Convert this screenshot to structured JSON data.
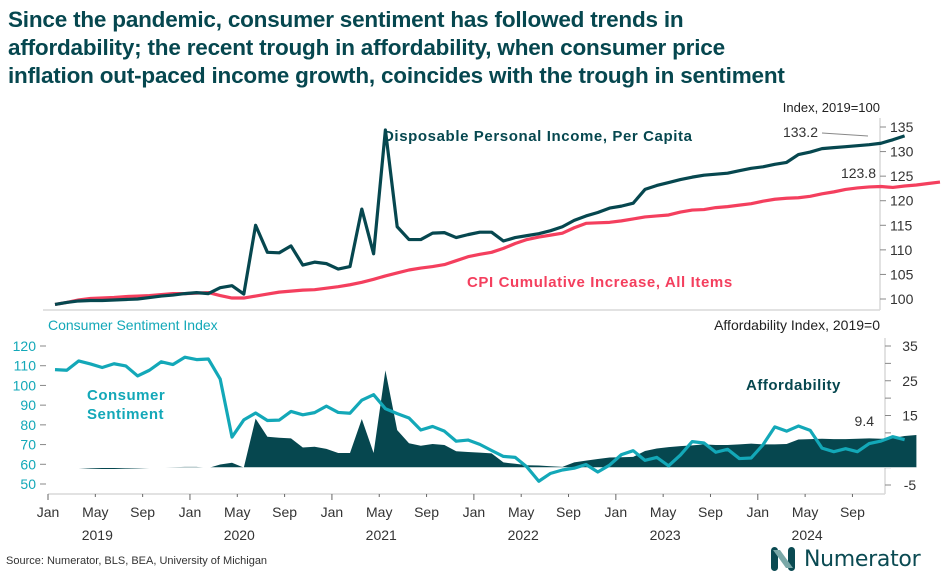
{
  "title_lines": [
    "Since the pandemic, consumer sentiment has followed trends in",
    "affordability; the recent trough in affordability, when consumer price",
    "inflation out-paced income growth, coincides with the trough in sentiment"
  ],
  "source": "Source: Numerator, BLS, BEA, University of Michigan",
  "logo_text": "Numerator",
  "colors": {
    "title": "#06474f",
    "income": "#06474f",
    "cpi": "#f43f5e",
    "sentiment": "#13a8b8",
    "affordability": "#06474f"
  },
  "chart_data": [
    {
      "type": "line",
      "ylabel": "Index, 2019=100",
      "ylim": [
        98,
        136
      ],
      "yticks": [
        100,
        105,
        110,
        115,
        120,
        125,
        130,
        135
      ],
      "x_start": "2019-01",
      "series": [
        {
          "name": "Disposable Personal Income, Per Capita",
          "end_label": "133.2",
          "values": [
            98.9,
            99.3,
            99.6,
            99.7,
            99.7,
            99.8,
            99.9,
            100.0,
            100.3,
            100.6,
            100.8,
            101.1,
            101.3,
            101.1,
            102.3,
            102.7,
            101.0,
            115.0,
            109.5,
            109.4,
            110.8,
            106.9,
            107.5,
            107.2,
            106.1,
            106.6,
            118.3,
            109.2,
            134.4,
            114.7,
            112.1,
            112.1,
            113.4,
            113.5,
            112.5,
            113.1,
            113.6,
            113.6,
            111.8,
            112.5,
            112.9,
            113.3,
            113.9,
            114.7,
            116.0,
            116.9,
            117.6,
            118.5,
            118.9,
            119.5,
            122.3,
            123.1,
            123.7,
            124.3,
            124.8,
            125.2,
            125.4,
            125.6,
            126.1,
            126.6,
            126.9,
            127.4,
            127.8,
            129.4,
            129.9,
            130.6,
            130.8,
            131.0,
            131.2,
            131.4,
            131.7,
            132.4,
            133.2
          ]
        },
        {
          "name": "CPI Cumulative Increase, All Items",
          "end_label": "123.8",
          "values": [
            98.9,
            99.3,
            99.8,
            100.1,
            100.2,
            100.3,
            100.5,
            100.6,
            100.7,
            100.9,
            101.1,
            101.1,
            101.2,
            101.3,
            100.7,
            100.2,
            100.2,
            100.6,
            101.0,
            101.4,
            101.6,
            101.8,
            101.9,
            102.2,
            102.5,
            102.9,
            103.4,
            104.0,
            104.7,
            105.3,
            105.9,
            106.3,
            106.6,
            107.0,
            107.8,
            108.6,
            109.1,
            109.5,
            110.3,
            111.3,
            112.1,
            112.6,
            113.0,
            113.4,
            114.5,
            115.4,
            115.5,
            115.6,
            115.9,
            116.3,
            116.7,
            116.9,
            117.1,
            117.7,
            118.1,
            118.2,
            118.6,
            118.8,
            119.1,
            119.4,
            119.9,
            120.3,
            120.5,
            120.6,
            120.9,
            121.4,
            121.8,
            122.3,
            122.6,
            122.8,
            122.9,
            122.7,
            123.0,
            123.2,
            123.5,
            123.8
          ]
        }
      ],
      "annotations": [
        "Disposable Personal Income, Per Capita",
        "CPI Cumulative Increase, All Items"
      ]
    },
    {
      "type": "line+area",
      "ylabel_left": "Consumer Sentiment Index",
      "ylabel_right": "Affordability Index, 2019=0",
      "ylim_left": [
        46,
        124
      ],
      "yticks_left": [
        50,
        60,
        70,
        80,
        90,
        100,
        110,
        120
      ],
      "ylim_right": [
        -7,
        37
      ],
      "yticks_right": [
        -5,
        0,
        5,
        10,
        15,
        20,
        25,
        30,
        35
      ],
      "yticklabels_right": [
        "-5",
        "",
        "5",
        "",
        "15",
        "",
        "25",
        "",
        "35"
      ],
      "x_start": "2019-01",
      "series": [
        {
          "name": "Consumer Sentiment",
          "axis": "left",
          "type": "line",
          "values": [
            108.0,
            107.7,
            112.4,
            110.9,
            109.1,
            111.0,
            109.9,
            104.8,
            107.7,
            112.0,
            110.6,
            114.3,
            113.1,
            113.4,
            103.2,
            73.8,
            82.5,
            86.0,
            82.2,
            82.4,
            86.8,
            85.1,
            86.2,
            89.5,
            86.3,
            85.9,
            92.5,
            95.3,
            88.2,
            85.7,
            83.5,
            77.4,
            79.2,
            76.8,
            71.7,
            72.3,
            70.1,
            67.0,
            64.0,
            63.5,
            58.6,
            51.4,
            55.4,
            57.1,
            58.0,
            59.9,
            56.1,
            59.6,
            64.9,
            66.9,
            62.0,
            63.5,
            59.2,
            64.7,
            71.5,
            70.8,
            66.1,
            67.6,
            62.9,
            63.2,
            69.9,
            79.0,
            76.8,
            79.4,
            77.2,
            68.2,
            66.4,
            67.9,
            66.4,
            70.5,
            71.8,
            74.0,
            72.5
          ]
        },
        {
          "name": "Affordability",
          "axis": "right",
          "type": "area",
          "end_label": "9.4",
          "values": [
            0.0,
            0.0,
            -0.1,
            -0.3,
            -0.4,
            -0.4,
            -0.3,
            -0.2,
            -0.1,
            0.0,
            0.1,
            0.2,
            0.2,
            -0.1,
            0.9,
            1.4,
            0.0,
            14.1,
            8.9,
            8.6,
            8.4,
            5.8,
            6.0,
            5.4,
            4.2,
            4.2,
            14.0,
            4.2,
            28.0,
            10.8,
            7.0,
            6.3,
            6.8,
            6.5,
            4.7,
            4.5,
            4.3,
            4.1,
            1.5,
            1.1,
            0.7,
            0.6,
            0.4,
            0.2,
            1.5,
            2.0,
            2.5,
            2.9,
            3.0,
            3.1,
            4.8,
            5.5,
            5.9,
            6.2,
            6.4,
            6.7,
            6.5,
            6.5,
            6.7,
            6.9,
            6.7,
            6.7,
            6.8,
            8.1,
            8.2,
            8.3,
            8.2,
            8.2,
            8.3,
            8.4,
            8.3,
            8.5,
            9.1,
            9.4
          ]
        }
      ],
      "annotations": [
        "Consumer Sentiment",
        "Affordability"
      ]
    }
  ],
  "x_axis": {
    "month_labels": [
      "Jan",
      "May",
      "Sep",
      "Jan",
      "May",
      "Sep",
      "Jan",
      "May",
      "Sep",
      "Jan",
      "May",
      "Sep",
      "Jan",
      "May",
      "Sep",
      "Jan",
      "May",
      "Sep"
    ],
    "year_labels": [
      "2019",
      "2020",
      "2021",
      "2022",
      "2023",
      "2024"
    ]
  }
}
